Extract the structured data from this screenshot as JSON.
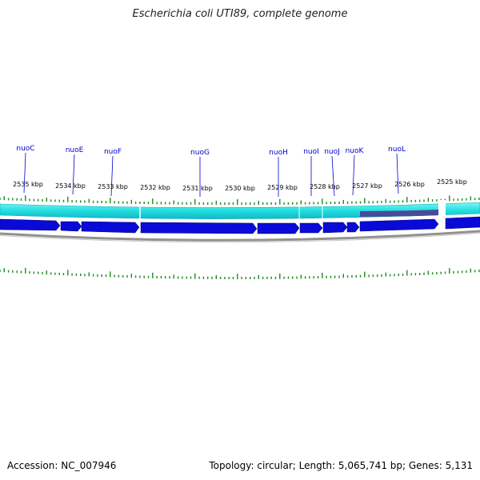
{
  "title": "Escherichia coli UTI89, complete genome",
  "footer": {
    "accession": "Accession: NC_007946",
    "topology": "Topology: circular; Length: 5,065,741 bp; Genes: 5,131"
  },
  "scale": {
    "labels": [
      "2535 kbp",
      "2534 kbp",
      "2533 kbp",
      "2532 kbp",
      "2531 kbp",
      "2530 kbp",
      "2529 kbp",
      "2528 kbp",
      "2527 kbp",
      "2526 kbp",
      "2525 kbp"
    ]
  },
  "genes": [
    {
      "label": "nuoC"
    },
    {
      "label": "nuoE"
    },
    {
      "label": "nuoF"
    },
    {
      "label": "nuoG"
    },
    {
      "label": "nuoH"
    },
    {
      "label": "nuoI"
    },
    {
      "label": "nuoJ"
    },
    {
      "label": "nuoK"
    },
    {
      "label": "nuoL"
    }
  ],
  "colors": {
    "tick": "#1e8a1e",
    "cds": "#0a0ad8",
    "feature_band": "#22dede",
    "feature_band_dark": "#4a4a9a",
    "backbone": "#909090",
    "gene_label": "#0000cc"
  }
}
